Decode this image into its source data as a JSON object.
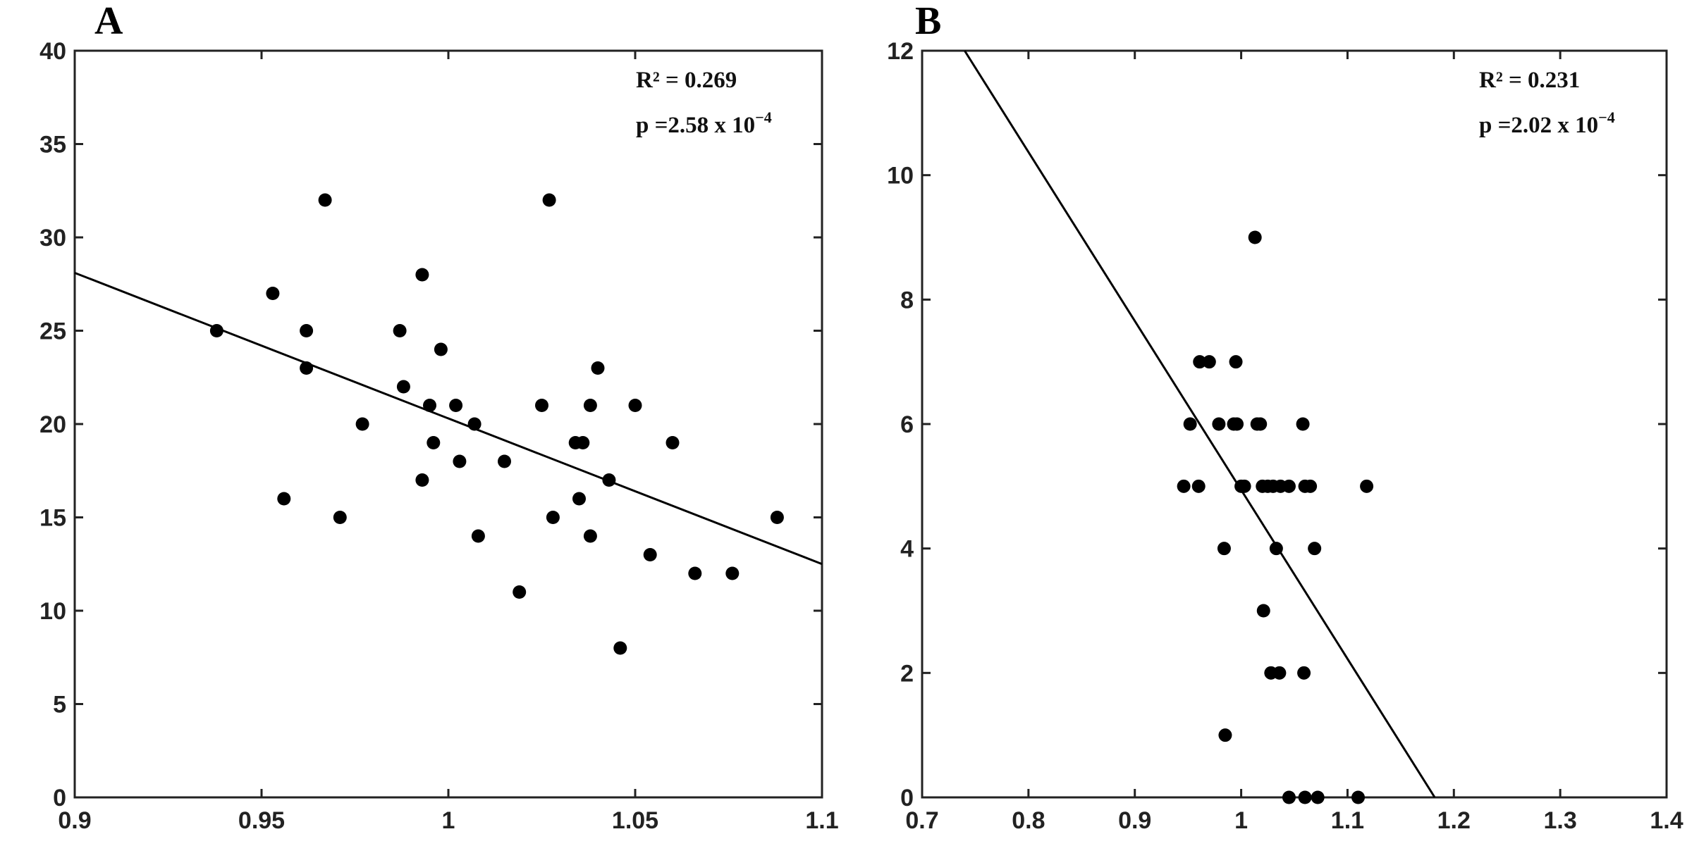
{
  "chart_data": [
    {
      "type": "scatter",
      "panel_label": "A",
      "title": "",
      "xlabel": "",
      "ylabel": "",
      "xlim": [
        0.9,
        1.1
      ],
      "ylim": [
        0,
        40
      ],
      "xticks": [
        0.9,
        0.95,
        1,
        1.05,
        1.1
      ],
      "xtick_labels": [
        "0.9",
        "0.95",
        "1",
        "1.05",
        "1.1"
      ],
      "yticks": [
        0,
        5,
        10,
        15,
        20,
        25,
        30,
        35,
        40
      ],
      "ytick_labels": [
        "0",
        "5",
        "10",
        "15",
        "20",
        "25",
        "30",
        "35",
        "40"
      ],
      "annotation": {
        "r2_text": "R² = 0.269",
        "p_text": "p =2.58 x 10",
        "p_exp": "−4"
      },
      "fit_line": {
        "x": [
          0.9,
          1.1
        ],
        "y": [
          28.1,
          12.5
        ]
      },
      "points": [
        [
          0.938,
          25
        ],
        [
          0.953,
          27
        ],
        [
          0.956,
          16
        ],
        [
          0.962,
          25
        ],
        [
          0.962,
          23
        ],
        [
          0.967,
          32
        ],
        [
          0.971,
          15
        ],
        [
          0.977,
          20
        ],
        [
          0.987,
          25
        ],
        [
          0.988,
          22
        ],
        [
          0.993,
          28
        ],
        [
          0.993,
          17
        ],
        [
          0.995,
          21
        ],
        [
          0.996,
          19
        ],
        [
          0.998,
          24
        ],
        [
          1.002,
          21
        ],
        [
          1.003,
          18
        ],
        [
          1.007,
          20
        ],
        [
          1.008,
          14
        ],
        [
          1.015,
          18
        ],
        [
          1.019,
          11
        ],
        [
          1.025,
          21
        ],
        [
          1.027,
          32
        ],
        [
          1.028,
          15
        ],
        [
          1.034,
          19
        ],
        [
          1.035,
          16
        ],
        [
          1.036,
          19
        ],
        [
          1.038,
          21
        ],
        [
          1.038,
          14
        ],
        [
          1.04,
          23
        ],
        [
          1.043,
          17
        ],
        [
          1.046,
          8
        ],
        [
          1.05,
          21
        ],
        [
          1.054,
          13
        ],
        [
          1.06,
          19
        ],
        [
          1.066,
          12
        ],
        [
          1.076,
          12
        ],
        [
          1.088,
          15
        ]
      ]
    },
    {
      "type": "scatter",
      "panel_label": "B",
      "title": "",
      "xlabel": "",
      "ylabel": "",
      "xlim": [
        0.7,
        1.4
      ],
      "ylim": [
        0,
        12
      ],
      "xticks": [
        0.7,
        0.8,
        0.9,
        1,
        1.1,
        1.2,
        1.3,
        1.4
      ],
      "xtick_labels": [
        "0.7",
        "0.8",
        "0.9",
        "1",
        "1.1",
        "1.2",
        "1.3",
        "1.4"
      ],
      "yticks": [
        0,
        2,
        4,
        6,
        8,
        10,
        12
      ],
      "ytick_labels": [
        "0",
        "2",
        "4",
        "6",
        "8",
        "10",
        "12"
      ],
      "annotation": {
        "r2_text": "R² = 0.231",
        "p_text": "p =2.02 x 10",
        "p_exp": "−4"
      },
      "fit_line": {
        "x": [
          0.74,
          1.182
        ],
        "y": [
          12,
          0
        ]
      },
      "points": [
        [
          0.946,
          5
        ],
        [
          0.952,
          6
        ],
        [
          0.96,
          5
        ],
        [
          0.961,
          7
        ],
        [
          0.97,
          7
        ],
        [
          0.979,
          6
        ],
        [
          0.984,
          4
        ],
        [
          0.985,
          1
        ],
        [
          0.993,
          6
        ],
        [
          0.995,
          7
        ],
        [
          0.996,
          6
        ],
        [
          1.0,
          5
        ],
        [
          1.003,
          5
        ],
        [
          1.013,
          9
        ],
        [
          1.015,
          6
        ],
        [
          1.018,
          6
        ],
        [
          1.02,
          5
        ],
        [
          1.021,
          3
        ],
        [
          1.025,
          5
        ],
        [
          1.028,
          2
        ],
        [
          1.03,
          5
        ],
        [
          1.033,
          4
        ],
        [
          1.036,
          2
        ],
        [
          1.037,
          5
        ],
        [
          1.045,
          5
        ],
        [
          1.045,
          0
        ],
        [
          1.058,
          6
        ],
        [
          1.059,
          2
        ],
        [
          1.06,
          5
        ],
        [
          1.06,
          0
        ],
        [
          1.065,
          5
        ],
        [
          1.069,
          4
        ],
        [
          1.072,
          0
        ],
        [
          1.11,
          0
        ],
        [
          1.118,
          5
        ]
      ]
    }
  ]
}
